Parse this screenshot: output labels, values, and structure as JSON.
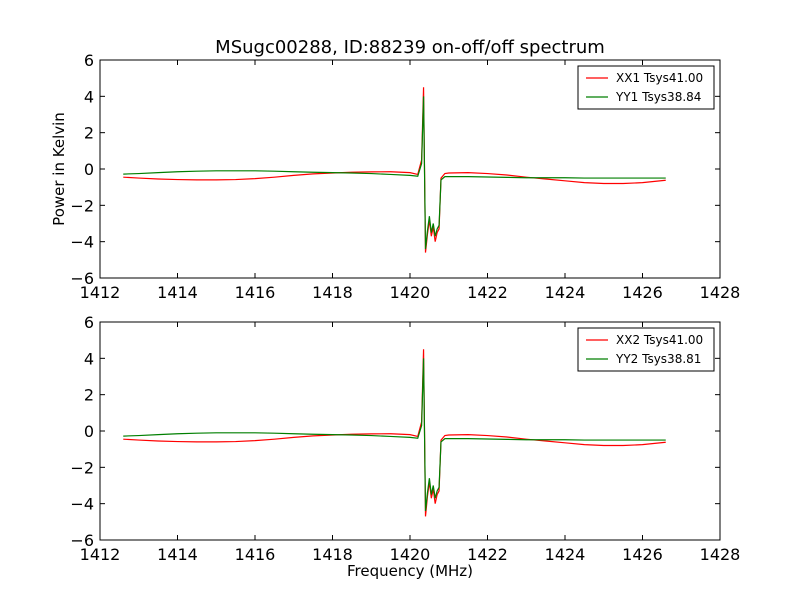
{
  "chart_data": [
    {
      "type": "line",
      "title": "MSugc00288, ID:88239 on-off/off spectrum",
      "xlabel": "",
      "ylabel": "Power in Kelvin",
      "xlim": [
        1412,
        1428
      ],
      "ylim": [
        -6,
        6
      ],
      "xticks": [
        "1412",
        "1414",
        "1416",
        "1418",
        "1420",
        "1422",
        "1424",
        "1426",
        "1428"
      ],
      "yticks": [
        "6",
        "4",
        "2",
        "0",
        "−2",
        "−4",
        "−6"
      ],
      "legend_position": "upper-right",
      "series": [
        {
          "name": "XX1 Tsys41.00",
          "color": "#ff0000",
          "x": [
            1412.6,
            1413.0,
            1413.5,
            1414.0,
            1414.5,
            1415.0,
            1415.5,
            1416.0,
            1416.5,
            1417.0,
            1417.5,
            1418.0,
            1418.5,
            1419.0,
            1419.5,
            1420.0,
            1420.2,
            1420.3,
            1420.35,
            1420.4,
            1420.45,
            1420.5,
            1420.55,
            1420.6,
            1420.65,
            1420.7,
            1420.75,
            1420.8,
            1420.9,
            1421.0,
            1421.5,
            1422.0,
            1422.5,
            1423.0,
            1423.5,
            1424.0,
            1424.5,
            1425.0,
            1425.5,
            1426.0,
            1426.6
          ],
          "y": [
            -0.45,
            -0.5,
            -0.55,
            -0.58,
            -0.6,
            -0.6,
            -0.58,
            -0.53,
            -0.45,
            -0.35,
            -0.27,
            -0.22,
            -0.18,
            -0.16,
            -0.15,
            -0.2,
            -0.3,
            0.5,
            4.5,
            -4.6,
            -3.6,
            -2.8,
            -3.7,
            -3.2,
            -4.0,
            -3.5,
            -3.3,
            -0.5,
            -0.25,
            -0.22,
            -0.2,
            -0.25,
            -0.33,
            -0.45,
            -0.55,
            -0.65,
            -0.75,
            -0.8,
            -0.8,
            -0.75,
            -0.62
          ]
        },
        {
          "name": "YY1 Tsys38.84",
          "color": "#007f00",
          "x": [
            1412.6,
            1413.0,
            1413.5,
            1414.0,
            1414.5,
            1415.0,
            1415.5,
            1416.0,
            1416.5,
            1417.0,
            1417.5,
            1418.0,
            1418.5,
            1419.0,
            1419.5,
            1420.0,
            1420.2,
            1420.3,
            1420.35,
            1420.4,
            1420.45,
            1420.5,
            1420.55,
            1420.6,
            1420.65,
            1420.7,
            1420.75,
            1420.8,
            1420.9,
            1421.0,
            1421.5,
            1422.0,
            1422.5,
            1423.0,
            1423.5,
            1424.0,
            1424.5,
            1425.0,
            1425.5,
            1426.0,
            1426.6
          ],
          "y": [
            -0.28,
            -0.25,
            -0.2,
            -0.15,
            -0.12,
            -0.1,
            -0.1,
            -0.1,
            -0.12,
            -0.15,
            -0.18,
            -0.2,
            -0.22,
            -0.25,
            -0.3,
            -0.35,
            -0.4,
            0.3,
            4.0,
            -4.4,
            -3.4,
            -2.6,
            -3.5,
            -3.0,
            -3.7,
            -3.3,
            -3.1,
            -0.6,
            -0.42,
            -0.42,
            -0.42,
            -0.44,
            -0.46,
            -0.48,
            -0.48,
            -0.48,
            -0.5,
            -0.5,
            -0.5,
            -0.5,
            -0.5
          ]
        }
      ]
    },
    {
      "type": "line",
      "title": "",
      "xlabel": "Frequency (MHz)",
      "ylabel": "",
      "xlim": [
        1412,
        1428
      ],
      "ylim": [
        -6,
        6
      ],
      "xticks": [
        "1412",
        "1414",
        "1416",
        "1418",
        "1420",
        "1422",
        "1424",
        "1426",
        "1428"
      ],
      "yticks": [
        "6",
        "4",
        "2",
        "0",
        "−2",
        "−4",
        "−6"
      ],
      "legend_position": "upper-right",
      "series": [
        {
          "name": "XX2 Tsys41.00",
          "color": "#ff0000",
          "x": [
            1412.6,
            1413.0,
            1413.5,
            1414.0,
            1414.5,
            1415.0,
            1415.5,
            1416.0,
            1416.5,
            1417.0,
            1417.5,
            1418.0,
            1418.5,
            1419.0,
            1419.5,
            1420.0,
            1420.2,
            1420.3,
            1420.35,
            1420.4,
            1420.45,
            1420.5,
            1420.55,
            1420.6,
            1420.65,
            1420.7,
            1420.75,
            1420.8,
            1420.9,
            1421.0,
            1421.5,
            1422.0,
            1422.5,
            1423.0,
            1423.5,
            1424.0,
            1424.5,
            1425.0,
            1425.5,
            1426.0,
            1426.6
          ],
          "y": [
            -0.45,
            -0.5,
            -0.55,
            -0.58,
            -0.6,
            -0.6,
            -0.58,
            -0.53,
            -0.45,
            -0.35,
            -0.27,
            -0.22,
            -0.18,
            -0.16,
            -0.15,
            -0.2,
            -0.3,
            0.5,
            4.5,
            -4.7,
            -3.6,
            -2.8,
            -3.7,
            -3.2,
            -4.0,
            -3.5,
            -3.3,
            -0.5,
            -0.25,
            -0.22,
            -0.2,
            -0.25,
            -0.33,
            -0.45,
            -0.55,
            -0.65,
            -0.75,
            -0.8,
            -0.8,
            -0.75,
            -0.62
          ]
        },
        {
          "name": "YY2 Tsys38.81",
          "color": "#007f00",
          "x": [
            1412.6,
            1413.0,
            1413.5,
            1414.0,
            1414.5,
            1415.0,
            1415.5,
            1416.0,
            1416.5,
            1417.0,
            1417.5,
            1418.0,
            1418.5,
            1419.0,
            1419.5,
            1420.0,
            1420.2,
            1420.3,
            1420.35,
            1420.4,
            1420.45,
            1420.5,
            1420.55,
            1420.6,
            1420.65,
            1420.7,
            1420.75,
            1420.8,
            1420.9,
            1421.0,
            1421.5,
            1422.0,
            1422.5,
            1423.0,
            1423.5,
            1424.0,
            1424.5,
            1425.0,
            1425.5,
            1426.0,
            1426.6
          ],
          "y": [
            -0.28,
            -0.25,
            -0.2,
            -0.15,
            -0.12,
            -0.1,
            -0.1,
            -0.1,
            -0.12,
            -0.15,
            -0.18,
            -0.2,
            -0.22,
            -0.25,
            -0.3,
            -0.35,
            -0.4,
            0.3,
            4.0,
            -4.4,
            -3.4,
            -2.6,
            -3.5,
            -3.0,
            -3.7,
            -3.3,
            -3.1,
            -0.6,
            -0.42,
            -0.42,
            -0.42,
            -0.44,
            -0.46,
            -0.48,
            -0.48,
            -0.48,
            -0.5,
            -0.5,
            -0.5,
            -0.5,
            -0.5
          ]
        }
      ]
    }
  ]
}
